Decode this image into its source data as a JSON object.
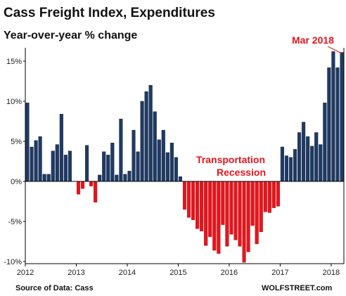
{
  "chart_data": {
    "type": "bar",
    "title": "Cass Freight Index, Expenditures",
    "subtitle": "Year-over-year % change",
    "xlabel": "",
    "ylabel": "",
    "ylim": [
      -10,
      16.5
    ],
    "xlim": [
      "2012-01",
      "2018-03"
    ],
    "grid": false,
    "y_ticks": [
      -10,
      -5,
      0,
      5,
      10,
      15
    ],
    "y_tick_labels": [
      "-10%",
      "-5%",
      "0%",
      "5%",
      "10%",
      "15%"
    ],
    "x_ticks": [
      "2012-01",
      "2013-01",
      "2014-01",
      "2015-01",
      "2016-01",
      "2017-01",
      "2018-01"
    ],
    "x_tick_labels": [
      "2012",
      "2013",
      "2014",
      "2015",
      "2016",
      "2017",
      "2018"
    ],
    "x": [
      "2012-01",
      "2012-02",
      "2012-03",
      "2012-04",
      "2012-05",
      "2012-06",
      "2012-07",
      "2012-08",
      "2012-09",
      "2012-10",
      "2012-11",
      "2012-12",
      "2013-01",
      "2013-02",
      "2013-03",
      "2013-04",
      "2013-05",
      "2013-06",
      "2013-07",
      "2013-08",
      "2013-09",
      "2013-10",
      "2013-11",
      "2013-12",
      "2014-01",
      "2014-02",
      "2014-03",
      "2014-04",
      "2014-05",
      "2014-06",
      "2014-07",
      "2014-08",
      "2014-09",
      "2014-10",
      "2014-11",
      "2014-12",
      "2015-01",
      "2015-02",
      "2015-03",
      "2015-04",
      "2015-05",
      "2015-06",
      "2015-07",
      "2015-08",
      "2015-09",
      "2015-10",
      "2015-11",
      "2015-12",
      "2016-01",
      "2016-02",
      "2016-03",
      "2016-04",
      "2016-05",
      "2016-06",
      "2016-07",
      "2016-08",
      "2016-09",
      "2016-10",
      "2016-11",
      "2016-12",
      "2017-01",
      "2017-02",
      "2017-03",
      "2017-04",
      "2017-05",
      "2017-06",
      "2017-07",
      "2017-08",
      "2017-09",
      "2017-10",
      "2017-11",
      "2017-12",
      "2018-01",
      "2018-02",
      "2018-03"
    ],
    "values": [
      9.8,
      4.3,
      5.1,
      5.6,
      0.9,
      0.9,
      3.8,
      4.6,
      8.4,
      3.3,
      3.8,
      0,
      -1.6,
      -0.9,
      4.5,
      -0.6,
      -2.6,
      0.8,
      3.7,
      3.3,
      4.8,
      0.8,
      7.8,
      0.9,
      1.3,
      6.4,
      3.7,
      10.0,
      11.2,
      12.0,
      8.7,
      5.2,
      6.4,
      3.6,
      4.8,
      3.0,
      0.6,
      -3.5,
      -4.5,
      -4.8,
      -5.9,
      -6.2,
      -8.0,
      -6.9,
      -8.6,
      -9.0,
      -5.4,
      -8.1,
      -6.6,
      -7.3,
      -8.1,
      -10.1,
      -8.8,
      -5.5,
      -7.8,
      -6.3,
      -3.8,
      -3.9,
      -3.3,
      -3.1,
      4.3,
      3.2,
      3.0,
      4.0,
      6.1,
      7.4,
      5.6,
      4.4,
      6.1,
      4.6,
      9.8,
      14.2,
      16.2,
      14.2,
      16.1
    ],
    "positive_color": "#1f3a63",
    "negative_color": "#e8141c",
    "annotations": [
      {
        "text": "Mar 2018",
        "points_to": "2018-03"
      },
      {
        "text": "Transportation",
        "near": "2016"
      },
      {
        "text": "Recession",
        "near": "2016"
      }
    ],
    "source": "Source of Data: Cass",
    "brand": "WOLFSTREET.com"
  }
}
